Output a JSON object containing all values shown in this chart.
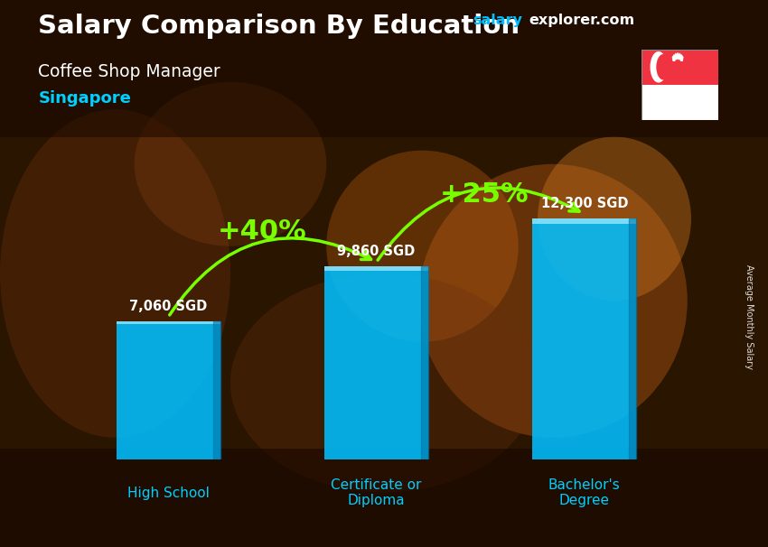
{
  "title_main": "Salary Comparison By Education",
  "title_sub": "Coffee Shop Manager",
  "title_location": "Singapore",
  "categories": [
    "High School",
    "Certificate or\nDiploma",
    "Bachelor's\nDegree"
  ],
  "values": [
    7060,
    9860,
    12300
  ],
  "value_labels": [
    "7,060 SGD",
    "9,860 SGD",
    "12,300 SGD"
  ],
  "bar_color_face": "#00BFFF",
  "bar_color_light": "#aaeeff",
  "bar_color_dark": "#0077aa",
  "pct_labels": [
    "+40%",
    "+25%"
  ],
  "bg_color": "#2a1500",
  "text_color_white": "#ffffff",
  "text_color_cyan": "#00CFFF",
  "text_color_green": "#77FF00",
  "website_color_salary": "#00BFFF",
  "website_color_explorer": "#ffffff",
  "ylabel": "Average Monthly Salary",
  "ylim": [
    0,
    14500
  ],
  "bar_positions": [
    0,
    1,
    2
  ],
  "bar_width": 0.5,
  "flag_red": "#EF3340",
  "flag_white": "#ffffff"
}
